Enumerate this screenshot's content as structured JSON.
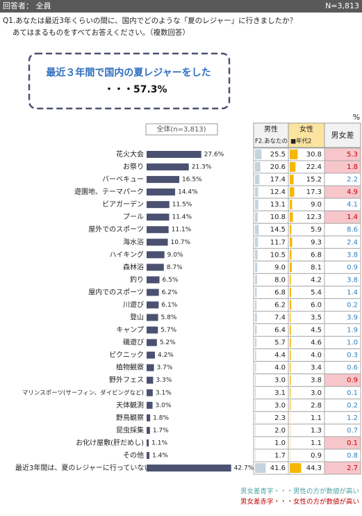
{
  "header": {
    "respondents": "回答者： 全員",
    "n": "N=3,813"
  },
  "question": [
    "Q1.あなたは最近3年くらいの間に、国内でどのような「夏のレジャー」に行きましたか？",
    "あてはまるものをすべてお答えください。（複数回答）"
  ],
  "highlight": {
    "label": "最近３年間で国内の夏レジャーをした",
    "value_label": "・・・57.3%"
  },
  "unit": "%",
  "chart_data": {
    "type": "bar",
    "categories": [
      "花火大会",
      "お祭り",
      "バーベキュー",
      "遊園地、テーマパーク",
      "ビアガーデン",
      "プール",
      "屋外でのスポーツ",
      "海水浴",
      "ハイキング",
      "森林浴",
      "釣り",
      "屋内でのスポーツ",
      "川遊び",
      "登山",
      "キャンプ",
      "磯遊び",
      "ピクニック",
      "植物観察",
      "野外フェス",
      "マリンスポーツ(サーフィン、ダイビングなど)",
      "天体観測",
      "野鳥観察",
      "昆虫採集",
      "お化け屋敷(肝だめし)",
      "その他",
      "最近3年間は、夏のレジャーに行っていない"
    ],
    "series": [
      {
        "name": "全体(n=3,813)",
        "color": "#4b5170",
        "values": [
          27.6,
          21.3,
          16.5,
          14.4,
          11.5,
          11.4,
          11.1,
          10.7,
          9.0,
          8.7,
          6.5,
          6.2,
          6.1,
          5.8,
          5.7,
          5.2,
          4.2,
          3.7,
          3.3,
          3.1,
          3.0,
          1.8,
          1.7,
          1.1,
          1.4,
          42.7
        ],
        "value_labels": [
          "27.6%",
          "21.3%",
          "16.5%",
          "14.4%",
          "11.5%",
          "11.4%",
          "11.1%",
          "10.7%",
          "9.0%",
          "8.7%",
          "6.5%",
          "6.2%",
          "6.1%",
          "5.8%",
          "5.7%",
          "5.2%",
          "4.2%",
          "3.7%",
          "3.3%",
          "3.1%",
          "3.0%",
          "1.8%",
          "1.7%",
          "1.1%",
          "1.4%",
          "42.7%"
        ]
      },
      {
        "name": "男性",
        "color": "#c5d3dc",
        "values": [
          25.5,
          20.6,
          17.4,
          12.4,
          13.1,
          10.8,
          14.5,
          11.7,
          10.5,
          9.0,
          8.0,
          6.8,
          6.2,
          7.4,
          6.4,
          5.7,
          4.4,
          4.0,
          3.0,
          3.1,
          3.0,
          2.3,
          2.0,
          1.0,
          1.7,
          41.6
        ],
        "value_labels": [
          "25.5",
          "20.6",
          "17.4",
          "12.4",
          "13.1",
          "10.8",
          "14.5",
          "11.7",
          "10.5",
          "9.0",
          "8.0",
          "6.8",
          "6.2",
          "7.4",
          "6.4",
          "5.7",
          "4.4",
          "4.0",
          "3.0",
          "3.1",
          "3.0",
          "2.3",
          "2.0",
          "1.0",
          "1.7",
          "41.6"
        ]
      },
      {
        "name": "女性",
        "color": "#f5b800",
        "values": [
          30.8,
          22.4,
          15.2,
          17.3,
          9.0,
          12.3,
          5.9,
          9.3,
          6.8,
          8.1,
          4.2,
          5.4,
          6.0,
          3.5,
          4.5,
          4.6,
          4.0,
          3.4,
          3.8,
          3.0,
          2.8,
          1.1,
          1.3,
          1.1,
          0.9,
          44.3
        ],
        "value_labels": [
          "30.8",
          "22.4",
          "15.2",
          "17.3",
          "9.0",
          "12.3",
          "5.9",
          "9.3",
          "6.8",
          "8.1",
          "4.2",
          "5.4",
          "6.0",
          "3.5",
          "4.5",
          "4.6",
          "4.0",
          "3.4",
          "3.8",
          "3.0",
          "2.8",
          "1.1",
          "1.3",
          "1.1",
          "0.9",
          "44.3"
        ]
      }
    ],
    "sub_headers": [
      "F2.あなたの",
      "■年代2"
    ],
    "diff": {
      "name": "男女差",
      "values": [
        5.3,
        1.8,
        -2.2,
        4.9,
        -4.1,
        1.4,
        -8.6,
        -2.4,
        -3.8,
        -0.9,
        -3.8,
        -1.4,
        -0.2,
        -3.9,
        -1.9,
        -1.0,
        -0.3,
        -0.6,
        0.9,
        -0.1,
        -0.2,
        -1.2,
        -0.7,
        0.1,
        -0.8,
        2.7
      ],
      "value_labels": [
        "5.3",
        "1.8",
        "2.2",
        "4.9",
        "4.1",
        "1.4",
        "8.6",
        "2.4",
        "3.8",
        "0.9",
        "3.8",
        "1.4",
        "0.2",
        "3.9",
        "1.9",
        "1.0",
        "0.3",
        "0.6",
        "0.9",
        "0.1",
        "0.2",
        "1.2",
        "0.7",
        "0.1",
        "0.8",
        "2.7"
      ],
      "positive_color": "#c00000",
      "positive_fill": "#f7c6cb",
      "negative_color": "#2f7fc1"
    }
  },
  "notes": [
    {
      "text": "男女差青字・・・男性の方が数値が高い",
      "color": "#4aa3a3"
    },
    {
      "text": "男女差赤字・・・女性の方が数値が高い",
      "color": "#c00000"
    }
  ]
}
